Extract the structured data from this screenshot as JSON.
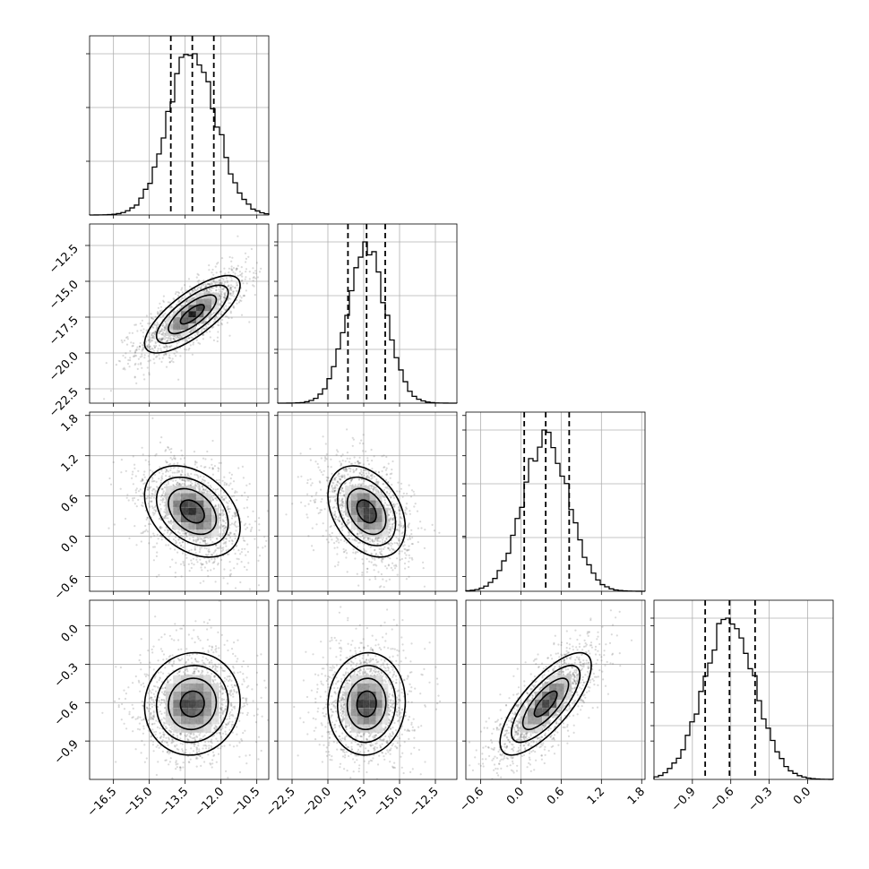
{
  "chart_data": {
    "type": "corner",
    "title": "",
    "parameters": [
      {
        "mean": -13.2,
        "std": 1.0,
        "range": [
          -17.5,
          -10.0
        ],
        "ticks": [
          -16.5,
          -15.0,
          -13.5,
          -12.0,
          -10.5
        ],
        "tick_labels": [
          "−16.5",
          "−15.0",
          "−13.5",
          "−12.0",
          "−10.5"
        ],
        "quantiles": [
          -14.1,
          -13.2,
          -12.3
        ],
        "hist_bins": 20,
        "hist_peak_frac": 0.88
      },
      {
        "mean": -17.3,
        "std": 1.35,
        "range": [
          -23.5,
          -11.0
        ],
        "ticks": [
          -22.5,
          -20.0,
          -17.5,
          -15.0,
          -12.5
        ],
        "tick_labels": [
          "−22.5",
          "−20.0",
          "−17.5",
          "−15.0",
          "−12.5"
        ],
        "quantiles": [
          -18.6,
          -17.3,
          -16.0
        ],
        "hist_bins": 20,
        "hist_peak_frac": 0.88
      },
      {
        "mean": 0.37,
        "std": 0.34,
        "range": [
          -0.82,
          1.85
        ],
        "ticks": [
          -0.6,
          0.0,
          0.6,
          1.2,
          1.8
        ],
        "tick_labels": [
          "−0.6",
          "0.0",
          "0.6",
          "1.2",
          "1.8"
        ],
        "quantiles": [
          0.05,
          0.37,
          0.72
        ],
        "hist_bins": 20,
        "hist_peak_frac": 0.88
      },
      {
        "mean": -0.61,
        "std": 0.2,
        "range": [
          -1.2,
          0.2
        ],
        "ticks": [
          -0.9,
          -0.6,
          -0.3,
          0.0
        ],
        "tick_labels": [
          "−0.9",
          "−0.6",
          "−0.3",
          "0.0"
        ],
        "quantiles": [
          -0.8,
          -0.61,
          -0.41
        ],
        "hist_bins": 20,
        "hist_peak_frac": 0.88
      }
    ],
    "correlations": [
      [
        1.0,
        0.75,
        -0.35,
        0.05
      ],
      [
        0.75,
        1.0,
        -0.35,
        0.05
      ],
      [
        -0.35,
        -0.35,
        1.0,
        0.75
      ],
      [
        0.05,
        0.05,
        0.75,
        1.0
      ]
    ],
    "contour_levels_sigma": [
      0.5,
      1.0,
      1.5,
      2.0
    ],
    "grid": true,
    "scatter_points_per_panel": 1500
  }
}
